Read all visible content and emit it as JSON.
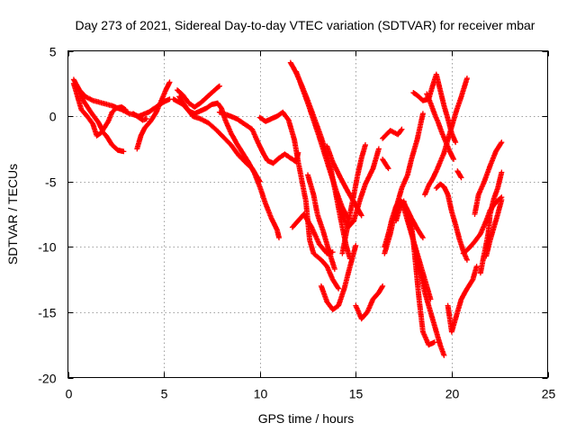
{
  "chart_data": {
    "type": "scatter",
    "title": "Day 273 of 2021, Sidereal Day-to-day VTEC variation (SDTVAR) for receiver mbar",
    "xlabel": "GPS time / hours",
    "ylabel": "SDTVAR / TECUs",
    "xlim": [
      0,
      25
    ],
    "ylim": [
      -20,
      5
    ],
    "xticks": [
      "0",
      "5",
      "10",
      "15",
      "20",
      "25"
    ],
    "yticks": [
      "5",
      "0",
      "-5",
      "-10",
      "-15",
      "-20"
    ],
    "grid": true,
    "marker": "plus",
    "color": "#ff0000",
    "tracks": [
      [
        [
          0.3,
          2.8
        ],
        [
          0.6,
          2.0
        ],
        [
          0.9,
          1.5
        ],
        [
          1.3,
          1.2
        ],
        [
          1.8,
          1.0
        ],
        [
          2.3,
          0.8
        ],
        [
          2.8,
          0.5
        ],
        [
          3.2,
          0.2
        ],
        [
          3.7,
          0.0
        ],
        [
          4.2,
          0.3
        ],
        [
          4.6,
          0.7
        ],
        [
          5.0,
          1.1
        ],
        [
          5.3,
          1.3
        ]
      ],
      [
        [
          0.3,
          2.5
        ],
        [
          0.5,
          1.5
        ],
        [
          0.7,
          0.5
        ],
        [
          1.0,
          0.0
        ],
        [
          1.3,
          -0.6
        ],
        [
          1.5,
          -1.5
        ],
        [
          1.8,
          -1.2
        ],
        [
          2.0,
          -1.5
        ],
        [
          2.3,
          -2.2
        ],
        [
          2.6,
          -2.6
        ],
        [
          2.9,
          -2.7
        ]
      ],
      [
        [
          0.5,
          2.2
        ],
        [
          0.8,
          1.2
        ],
        [
          1.2,
          0.3
        ],
        [
          1.6,
          -0.5
        ],
        [
          1.8,
          -1.1
        ],
        [
          2.1,
          -0.4
        ],
        [
          2.3,
          0.3
        ],
        [
          2.5,
          0.6
        ],
        [
          2.8,
          0.7
        ],
        [
          3.0,
          0.5
        ]
      ],
      [
        [
          3.4,
          0.2
        ],
        [
          3.7,
          -0.1
        ],
        [
          3.9,
          -0.3
        ],
        [
          4.1,
          -0.2
        ]
      ],
      [
        [
          3.6,
          -2.5
        ],
        [
          3.8,
          -1.5
        ],
        [
          4.0,
          -0.9
        ],
        [
          4.3,
          -0.4
        ],
        [
          4.6,
          0.3
        ],
        [
          4.9,
          1.3
        ],
        [
          5.1,
          2.0
        ],
        [
          5.3,
          2.6
        ]
      ],
      [
        [
          5.5,
          1.3
        ],
        [
          6.0,
          0.9
        ],
        [
          6.3,
          0.4
        ],
        [
          6.6,
          0.2
        ],
        [
          6.9,
          0.4
        ],
        [
          7.2,
          0.6
        ],
        [
          7.5,
          0.9
        ],
        [
          7.8,
          1.0
        ],
        [
          8.0,
          0.6
        ],
        [
          8.2,
          -0.3
        ],
        [
          8.5,
          -1.3
        ],
        [
          8.8,
          -2.1
        ],
        [
          9.1,
          -2.8
        ],
        [
          9.4,
          -3.5
        ],
        [
          9.7,
          -4.3
        ],
        [
          10.0,
          -5.4
        ],
        [
          10.3,
          -6.7
        ],
        [
          10.6,
          -7.8
        ],
        [
          10.9,
          -8.7
        ],
        [
          11.0,
          -9.3
        ]
      ],
      [
        [
          5.7,
          2.0
        ],
        [
          6.0,
          1.6
        ],
        [
          6.3,
          1.0
        ],
        [
          6.6,
          0.7
        ],
        [
          6.9,
          1.0
        ],
        [
          7.2,
          1.4
        ],
        [
          7.5,
          1.8
        ],
        [
          7.8,
          2.2
        ],
        [
          7.9,
          2.3
        ]
      ],
      [
        [
          5.8,
          1.5
        ],
        [
          6.2,
          0.6
        ],
        [
          6.5,
          0.0
        ],
        [
          6.9,
          -0.2
        ],
        [
          7.3,
          -0.5
        ],
        [
          7.7,
          -1.0
        ],
        [
          8.1,
          -1.6
        ],
        [
          8.5,
          -2.2
        ],
        [
          8.9,
          -3.0
        ],
        [
          9.3,
          -3.6
        ],
        [
          9.6,
          -4.0
        ],
        [
          9.8,
          -4.5
        ],
        [
          10.0,
          -5.0
        ]
      ],
      [
        [
          7.9,
          0.3
        ],
        [
          8.3,
          0.1
        ],
        [
          8.8,
          -0.2
        ],
        [
          9.2,
          -0.6
        ],
        [
          9.6,
          -1.0
        ],
        [
          9.9,
          -2.0
        ],
        [
          10.2,
          -2.9
        ],
        [
          10.4,
          -3.4
        ],
        [
          10.7,
          -3.6
        ],
        [
          11.0,
          -3.2
        ],
        [
          11.3,
          -2.9
        ],
        [
          11.6,
          -3.2
        ],
        [
          11.9,
          -3.5
        ],
        [
          12.0,
          -2.8
        ]
      ],
      [
        [
          10.0,
          -0.1
        ],
        [
          10.3,
          -0.4
        ],
        [
          10.6,
          -0.2
        ],
        [
          10.9,
          0.0
        ],
        [
          11.2,
          0.3
        ],
        [
          11.5,
          -0.3
        ],
        [
          11.8,
          -1.8
        ],
        [
          12.0,
          -3.5
        ],
        [
          12.2,
          -5.0
        ],
        [
          12.4,
          -6.5
        ],
        [
          12.5,
          -8.0
        ],
        [
          12.6,
          -9.5
        ],
        [
          12.8,
          -10.5
        ],
        [
          13.2,
          -11.0
        ],
        [
          13.5,
          -11.5
        ],
        [
          13.8,
          -12.5
        ],
        [
          14.1,
          -13.2
        ]
      ],
      [
        [
          11.6,
          4.1
        ],
        [
          11.9,
          3.3
        ],
        [
          12.2,
          2.3
        ],
        [
          12.5,
          1.2
        ],
        [
          12.8,
          0.0
        ],
        [
          13.1,
          -1.2
        ],
        [
          13.4,
          -2.5
        ],
        [
          13.7,
          -4.0
        ],
        [
          13.9,
          -5.5
        ],
        [
          14.1,
          -7.0
        ],
        [
          14.3,
          -8.5
        ],
        [
          14.5,
          -9.9
        ],
        [
          14.7,
          -10.9
        ]
      ],
      [
        [
          11.9,
          3.4
        ],
        [
          12.2,
          2.2
        ],
        [
          12.5,
          1.0
        ],
        [
          12.8,
          -0.3
        ],
        [
          13.1,
          -1.6
        ],
        [
          13.4,
          -3.0
        ],
        [
          13.7,
          -4.4
        ],
        [
          14.0,
          -5.8
        ],
        [
          14.3,
          -7.0
        ],
        [
          14.6,
          -7.8
        ]
      ],
      [
        [
          11.7,
          -8.5
        ],
        [
          12.0,
          -8.0
        ],
        [
          12.3,
          -7.5
        ],
        [
          12.7,
          -8.5
        ],
        [
          13.1,
          -9.8
        ],
        [
          13.5,
          -10.5
        ],
        [
          13.8,
          -10.4
        ]
      ],
      [
        [
          12.5,
          -4.5
        ],
        [
          12.8,
          -6.0
        ],
        [
          13.0,
          -7.5
        ],
        [
          13.3,
          -8.8
        ],
        [
          13.6,
          -10.3
        ],
        [
          13.9,
          -11.7
        ]
      ],
      [
        [
          13.2,
          -13.0
        ],
        [
          13.5,
          -14.2
        ],
        [
          13.8,
          -14.8
        ],
        [
          14.1,
          -14.5
        ],
        [
          14.4,
          -13.2
        ],
        [
          14.7,
          -11.5
        ],
        [
          15.0,
          -9.9
        ]
      ],
      [
        [
          13.5,
          -2.3
        ],
        [
          13.8,
          -3.5
        ],
        [
          14.2,
          -4.7
        ],
        [
          14.6,
          -5.8
        ],
        [
          15.0,
          -6.8
        ],
        [
          15.3,
          -7.6
        ]
      ],
      [
        [
          14.0,
          -5.9
        ],
        [
          14.3,
          -7.5
        ],
        [
          14.6,
          -8.5
        ],
        [
          14.9,
          -8.0
        ],
        [
          15.2,
          -6.5
        ],
        [
          15.5,
          -5.2
        ],
        [
          15.9,
          -4.0
        ],
        [
          16.2,
          -2.5
        ]
      ],
      [
        [
          14.3,
          -10.5
        ],
        [
          14.5,
          -9.0
        ],
        [
          14.7,
          -7.5
        ],
        [
          14.9,
          -6.0
        ],
        [
          15.1,
          -4.5
        ],
        [
          15.3,
          -3.2
        ],
        [
          15.5,
          -2.2
        ]
      ],
      [
        [
          15.0,
          -14.5
        ],
        [
          15.3,
          -15.5
        ],
        [
          15.6,
          -15.0
        ],
        [
          15.9,
          -14.0
        ],
        [
          16.2,
          -13.5
        ],
        [
          16.4,
          -13.0
        ]
      ],
      [
        [
          16.4,
          -1.7
        ],
        [
          16.8,
          -1.1
        ],
        [
          17.2,
          -1.4
        ],
        [
          17.4,
          -1.0
        ]
      ],
      [
        [
          16.4,
          -3.3
        ],
        [
          16.7,
          -4.0
        ]
      ],
      [
        [
          16.5,
          -10.5
        ],
        [
          16.8,
          -9.0
        ],
        [
          17.1,
          -7.0
        ],
        [
          17.4,
          -5.5
        ],
        [
          17.7,
          -4.5
        ],
        [
          17.9,
          -3.3
        ],
        [
          18.2,
          -1.8
        ],
        [
          18.5,
          0.2
        ]
      ],
      [
        [
          16.5,
          -10.0
        ],
        [
          16.7,
          -9.0
        ],
        [
          16.9,
          -7.8
        ],
        [
          17.1,
          -6.9
        ],
        [
          17.3,
          -6.4
        ],
        [
          17.6,
          -6.9
        ],
        [
          17.9,
          -7.8
        ],
        [
          18.2,
          -8.6
        ],
        [
          18.5,
          -9.3
        ]
      ],
      [
        [
          17.1,
          -8.0
        ],
        [
          17.3,
          -7.0
        ],
        [
          17.5,
          -6.5
        ],
        [
          17.7,
          -7.5
        ],
        [
          18.0,
          -9.5
        ],
        [
          18.3,
          -11.5
        ],
        [
          18.6,
          -13.5
        ],
        [
          18.9,
          -15.0
        ],
        [
          19.2,
          -16.5
        ],
        [
          19.4,
          -17.5
        ],
        [
          19.6,
          -18.3
        ]
      ],
      [
        [
          17.5,
          -7.0
        ],
        [
          17.8,
          -8.5
        ],
        [
          18.1,
          -10.0
        ],
        [
          18.4,
          -11.5
        ],
        [
          18.7,
          -13.0
        ],
        [
          18.9,
          -14.0
        ]
      ],
      [
        [
          17.9,
          -8.2
        ],
        [
          18.1,
          -11.0
        ],
        [
          18.3,
          -14.0
        ],
        [
          18.5,
          -16.5
        ],
        [
          18.8,
          -17.5
        ],
        [
          19.1,
          -17.3
        ]
      ],
      [
        [
          18.6,
          -6.0
        ],
        [
          18.8,
          -5.3
        ],
        [
          19.0,
          -4.8
        ],
        [
          19.2,
          -4.2
        ],
        [
          19.4,
          -3.5
        ],
        [
          19.6,
          -2.8
        ],
        [
          19.8,
          -1.8
        ],
        [
          20.0,
          -0.8
        ],
        [
          20.2,
          0.2
        ],
        [
          20.5,
          1.5
        ],
        [
          20.8,
          2.9
        ]
      ],
      [
        [
          18.7,
          1.7
        ],
        [
          18.9,
          1.0
        ],
        [
          19.1,
          0.2
        ],
        [
          19.3,
          -0.5
        ],
        [
          19.5,
          -1.3
        ],
        [
          19.7,
          -2.0
        ],
        [
          19.9,
          -2.7
        ],
        [
          20.1,
          -3.3
        ]
      ],
      [
        [
          18.0,
          1.8
        ],
        [
          18.2,
          1.6
        ],
        [
          18.5,
          1.2
        ],
        [
          18.8,
          1.3
        ],
        [
          19.0,
          2.3
        ],
        [
          19.2,
          3.2
        ],
        [
          19.4,
          2.0
        ],
        [
          19.6,
          0.8
        ],
        [
          19.8,
          -0.2
        ],
        [
          20.0,
          -1.3
        ],
        [
          20.2,
          -2.0
        ]
      ],
      [
        [
          19.2,
          -5.5
        ],
        [
          19.4,
          -5.2
        ],
        [
          19.6,
          -5.4
        ],
        [
          19.8,
          -6.0
        ],
        [
          20.0,
          -7.3
        ],
        [
          20.2,
          -8.3
        ],
        [
          20.4,
          -9.4
        ],
        [
          20.6,
          -10.3
        ],
        [
          20.8,
          -11.0
        ]
      ],
      [
        [
          19.8,
          -14.5
        ],
        [
          20.0,
          -16.5
        ],
        [
          20.3,
          -15.0
        ],
        [
          20.5,
          -14.0
        ],
        [
          20.8,
          -13.2
        ],
        [
          21.1,
          -12.5
        ],
        [
          21.3,
          -11.5
        ]
      ],
      [
        [
          20.3,
          -4.2
        ],
        [
          20.5,
          -4.7
        ]
      ],
      [
        [
          20.6,
          -10.5
        ],
        [
          20.9,
          -10.1
        ],
        [
          21.2,
          -9.6
        ],
        [
          21.5,
          -9.0
        ],
        [
          21.8,
          -8.0
        ],
        [
          22.0,
          -7.2
        ],
        [
          22.3,
          -6.6
        ],
        [
          22.6,
          -6.2
        ]
      ],
      [
        [
          21.5,
          -12.0
        ],
        [
          21.7,
          -10.5
        ],
        [
          21.9,
          -9.0
        ],
        [
          22.0,
          -7.5
        ],
        [
          22.2,
          -6.3
        ],
        [
          22.4,
          -5.5
        ],
        [
          22.6,
          -4.3
        ]
      ],
      [
        [
          21.2,
          -7.5
        ],
        [
          21.4,
          -6.0
        ],
        [
          21.7,
          -5.0
        ],
        [
          22.0,
          -3.8
        ],
        [
          22.3,
          -2.7
        ],
        [
          22.6,
          -2.0
        ]
      ],
      [
        [
          21.8,
          -10.7
        ],
        [
          22.0,
          -9.5
        ],
        [
          22.2,
          -8.5
        ],
        [
          22.4,
          -7.5
        ],
        [
          22.6,
          -6.4
        ]
      ]
    ]
  }
}
